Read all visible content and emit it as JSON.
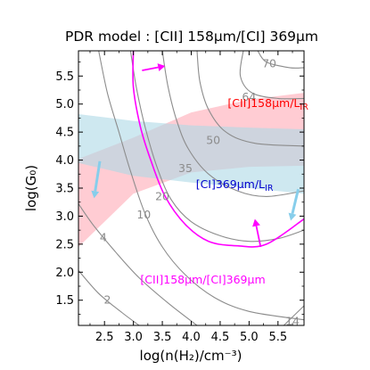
{
  "chart_data": {
    "type": "contour",
    "title": "PDR model :  [CII] 158μm/[CI] 369μm",
    "xlabel": "log(n(H₂)/cm⁻³)",
    "ylabel": "log(G₀)",
    "xlim": [
      2.05,
      5.95
    ],
    "ylim": [
      1.05,
      5.95
    ],
    "xticks": [
      2.5,
      3.0,
      3.5,
      4.0,
      4.5,
      5.0,
      5.5
    ],
    "xtick_labels": [
      "2.5",
      "3.0",
      "3.5",
      "4.0",
      "4.5",
      "5.0",
      "5.5"
    ],
    "yticks": [
      1.5,
      2.0,
      2.5,
      3.0,
      3.5,
      4.0,
      4.5,
      5.0,
      5.5
    ],
    "ytick_labels": [
      "1.5",
      "2.0",
      "2.5",
      "3.0",
      "3.5",
      "4.0",
      "4.5",
      "5.0",
      "5.5"
    ],
    "colors": {
      "contour": "#8c8c8c",
      "model_ratio": "#ff00ff",
      "cii_lir_band": "#ffb6c1",
      "ci_lir_band": "#add8e6",
      "cii_lir_text": "#ff0000",
      "ci_lir_text": "#0000cd",
      "ratio_text": "#ff00ff"
    },
    "contours": [
      {
        "label": "2",
        "points": [
          [
            2.05,
            2.03
          ],
          [
            2.4,
            1.62
          ],
          [
            2.8,
            1.28
          ],
          [
            3.1,
            1.05
          ]
        ]
      },
      {
        "label": "4",
        "points": [
          [
            2.05,
            3.22
          ],
          [
            2.3,
            2.85
          ],
          [
            2.7,
            2.35
          ],
          [
            3.1,
            1.9
          ],
          [
            3.6,
            1.45
          ],
          [
            4.1,
            1.05
          ]
        ]
      },
      {
        "label": "10",
        "points": [
          [
            2.4,
            5.95
          ],
          [
            2.55,
            5.2
          ],
          [
            2.75,
            4.5
          ],
          [
            2.95,
            3.8
          ],
          [
            3.2,
            3.05
          ],
          [
            3.5,
            2.45
          ],
          [
            3.9,
            1.95
          ],
          [
            4.4,
            1.55
          ],
          [
            5.0,
            1.3
          ],
          [
            5.95,
            1.15
          ]
        ]
      },
      {
        "label": "20",
        "points": [
          [
            2.95,
            5.95
          ],
          [
            3.05,
            5.3
          ],
          [
            3.2,
            4.6
          ],
          [
            3.4,
            3.9
          ],
          [
            3.65,
            3.3
          ],
          [
            4.0,
            2.9
          ],
          [
            4.5,
            2.65
          ],
          [
            5.0,
            2.55
          ],
          [
            5.5,
            2.6
          ],
          [
            5.95,
            2.75
          ]
        ]
      },
      {
        "label": "35",
        "points": [
          [
            3.5,
            5.95
          ],
          [
            3.6,
            5.3
          ],
          [
            3.75,
            4.7
          ],
          [
            3.95,
            4.2
          ],
          [
            4.3,
            3.75
          ],
          [
            4.8,
            3.45
          ],
          [
            5.3,
            3.35
          ],
          [
            5.95,
            3.45
          ]
        ]
      },
      {
        "label": "50",
        "points": [
          [
            4.1,
            5.95
          ],
          [
            4.15,
            5.4
          ],
          [
            4.3,
            4.9
          ],
          [
            4.6,
            4.5
          ],
          [
            5.1,
            4.3
          ],
          [
            5.95,
            4.25
          ]
        ]
      },
      {
        "label": "64",
        "points": [
          [
            4.9,
            5.95
          ],
          [
            4.85,
            5.5
          ],
          [
            5.05,
            5.2
          ],
          [
            5.5,
            5.1
          ],
          [
            5.95,
            5.1
          ]
        ]
      },
      {
        "label": "70",
        "points": [
          [
            5.15,
            5.95
          ],
          [
            5.3,
            5.75
          ],
          [
            5.7,
            5.65
          ],
          [
            5.95,
            5.65
          ]
        ]
      },
      {
        "label": "14",
        "points": [
          [
            5.6,
            1.05
          ],
          [
            5.95,
            1.4
          ]
        ]
      }
    ],
    "model_ratio_curve": {
      "label": "[CII]158μm/[CI]369μm",
      "points": [
        [
          3.0,
          5.95
        ],
        [
          3.0,
          5.3
        ],
        [
          3.12,
          4.6
        ],
        [
          3.3,
          4.0
        ],
        [
          3.55,
          3.35
        ],
        [
          3.9,
          2.85
        ],
        [
          4.3,
          2.55
        ],
        [
          4.8,
          2.47
        ],
        [
          5.3,
          2.5
        ],
        [
          5.95,
          2.95
        ]
      ]
    },
    "bands": [
      {
        "name": "[CII]158μm/LIR",
        "color": "#ffb6c1",
        "upper": [
          [
            2.05,
            4.02
          ],
          [
            3.0,
            4.4
          ],
          [
            4.0,
            4.85
          ],
          [
            5.0,
            5.08
          ],
          [
            5.95,
            5.2
          ]
        ],
        "lower": [
          [
            2.05,
            2.45
          ],
          [
            2.5,
            2.9
          ],
          [
            3.0,
            3.4
          ],
          [
            4.0,
            3.78
          ],
          [
            5.0,
            3.88
          ],
          [
            5.95,
            3.9
          ]
        ]
      },
      {
        "name": "[CI]369μm/LIR",
        "color": "#add8e6",
        "upper": [
          [
            2.05,
            4.82
          ],
          [
            3.0,
            4.7
          ],
          [
            4.0,
            4.62
          ],
          [
            5.0,
            4.58
          ],
          [
            5.95,
            4.55
          ]
        ],
        "lower": [
          [
            2.05,
            3.95
          ],
          [
            3.0,
            3.72
          ],
          [
            4.0,
            3.6
          ],
          [
            5.0,
            3.5
          ],
          [
            5.95,
            3.4
          ]
        ]
      }
    ],
    "arrows": [
      {
        "color": "#ff00ff",
        "from": [
          3.15,
          5.6
        ],
        "to": [
          3.55,
          5.68
        ]
      },
      {
        "color": "#ff00ff",
        "from": [
          5.2,
          2.45
        ],
        "to": [
          5.1,
          2.95
        ]
      },
      {
        "color": "#87ceeb",
        "from": [
          2.42,
          3.98
        ],
        "to": [
          2.32,
          3.32
        ]
      },
      {
        "color": "#87ceeb",
        "from": [
          5.85,
          3.48
        ],
        "to": [
          5.72,
          2.92
        ]
      }
    ],
    "annotations": [
      {
        "text": "[CII]158μm/L",
        "sub": "IR",
        "color": "#ff0000"
      },
      {
        "text": "[CI]369μm/L",
        "sub": "IR",
        "color": "#0000cd"
      },
      {
        "text": "[CII]158μm/[CI]369μm",
        "sub": "",
        "color": "#ff00ff"
      }
    ]
  }
}
